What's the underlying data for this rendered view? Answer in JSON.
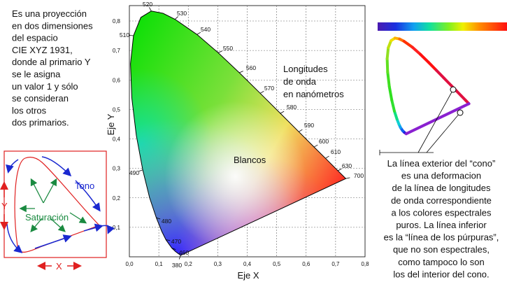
{
  "intro_text": [
    "Es una proyección",
    "en dos dimensiones",
    "del espacio",
    "CIE XYZ 1931,",
    "donde al primario Y",
    "se le asigna",
    "un valor 1 y sólo",
    "se consideran",
    "los otros",
    "dos primarios."
  ],
  "axis": {
    "x_label": "Eje  X",
    "y_label": "Eje  Y",
    "x_ticks": [
      "0,0",
      "0,1",
      "0,2",
      "0,3",
      "0,4",
      "0,5",
      "0,6",
      "0,7",
      "0,8"
    ],
    "y_ticks": [
      "0,1",
      "0,2",
      "0,3",
      "0,4",
      "0,5",
      "0,6",
      "0,7",
      "0,8"
    ]
  },
  "wavelengths": [
    "380",
    "460",
    "470",
    "480",
    "490",
    "510",
    "520",
    "530",
    "540",
    "550",
    "560",
    "570",
    "580",
    "590",
    "600",
    "610",
    "630",
    "700"
  ],
  "annotations": {
    "longitudes": [
      "Longitudes",
      "de onda",
      "en nanómetros"
    ],
    "blancos": "Blancos"
  },
  "inset": {
    "tono": "Tono",
    "saturacion": "Saturación",
    "x": "X",
    "y": "Y"
  },
  "note": [
    "La línea exterior del “cono”",
    "es una deformacion",
    "de la línea de longitudes",
    "de onda correspondiente",
    "a los colores espectrales",
    "puros.  La línea inferior",
    "es la “línea de los púrpuras”,",
    "que no son espectrales,",
    "como tampoco lo son",
    "los del interior del cono."
  ]
}
